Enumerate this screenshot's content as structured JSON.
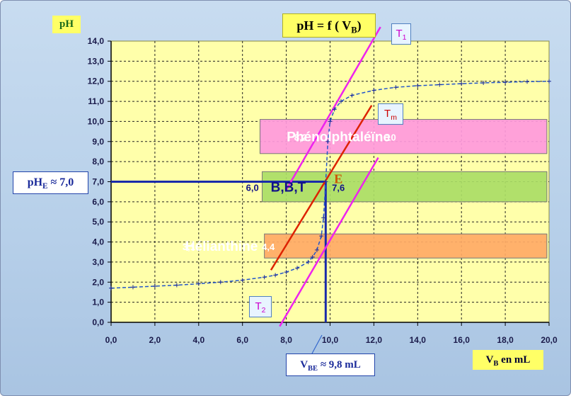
{
  "chart_data": {
    "type": "line",
    "title": "pH = f ( V",
    "title_sub": "B",
    "title_close": ")",
    "ylabel": "pH",
    "xlabel_main": "V",
    "xlabel_sub": "B",
    "xlabel_unit": " en mL",
    "xlim": [
      0,
      20
    ],
    "ylim": [
      0,
      14
    ],
    "x_ticks": [
      "0,0",
      "2,0",
      "4,0",
      "6,0",
      "8,0",
      "10,0",
      "12,0",
      "14,0",
      "16,0",
      "18,0",
      "20,0"
    ],
    "y_ticks": [
      "0,0",
      "1,0",
      "2,0",
      "3,0",
      "4,0",
      "5,0",
      "6,0",
      "7,0",
      "8,0",
      "9,0",
      "10,0",
      "11,0",
      "12,0",
      "13,0",
      "14,0"
    ],
    "grid": true,
    "series": [
      {
        "x": [
          0,
          1,
          2,
          3,
          4,
          5,
          6,
          7,
          7.5,
          8,
          8.5,
          9,
          9.2,
          9.4,
          9.6,
          9.7,
          9.8,
          9.9,
          10.0,
          10.2,
          10.5,
          11,
          12,
          13,
          14,
          15,
          16,
          17,
          18,
          19,
          20
        ],
        "y": [
          1.7,
          1.75,
          1.8,
          1.85,
          1.92,
          2.0,
          2.1,
          2.25,
          2.35,
          2.5,
          2.7,
          3.0,
          3.25,
          3.6,
          4.3,
          5.2,
          7.0,
          9.0,
          10.0,
          10.6,
          11.0,
          11.3,
          11.55,
          11.7,
          11.78,
          11.83,
          11.88,
          11.92,
          11.95,
          11.98,
          12.0
        ],
        "color": "#2255cc"
      }
    ],
    "tangents": [
      {
        "label": "T",
        "sub": "1",
        "color": "#ee22ee",
        "x1": 8.0,
        "y1": 6.6,
        "x2": 12.3,
        "y2": 14.7
      },
      {
        "label": "T",
        "sub": "m",
        "color": "#dd2200",
        "x1": 7.3,
        "y1": 2.6,
        "x2": 11.9,
        "y2": 10.8
      },
      {
        "label": "T",
        "sub": "2",
        "color": "#ee22ee",
        "x1": 7.7,
        "y1": -0.2,
        "x2": 12.2,
        "y2": 8.2
      }
    ],
    "equivalence": {
      "label": "E",
      "x": 9.8,
      "y": 7.0,
      "phe_label": "pH",
      "phe_sub": "E",
      "phe_value": " ≈  7,0",
      "vbe_label": "V",
      "vbe_sub": "BE",
      "vbe_value": " ≈ 9,8 mL"
    },
    "indicators": [
      {
        "name": "Phénolphtaléïne",
        "low_label": "8,2",
        "high_label": "10",
        "low": 8.2,
        "high": 10.0,
        "x_start": 6.8,
        "x_end": 19.9,
        "y_bottom": 8.4,
        "y_top": 10.1,
        "fill": "#ff99dd",
        "text_color": "#ffffff"
      },
      {
        "name": "B,B,T",
        "low_label": "6,0",
        "high_label": "7,6",
        "low": 6.0,
        "high": 7.6,
        "x_start": 6.9,
        "x_end": 19.9,
        "y_bottom": 6.0,
        "y_top": 7.5,
        "fill": "#aadd66",
        "text_color": "#111188"
      },
      {
        "name": "Hélianthine",
        "low_label": "3,1",
        "high_label": "4,4",
        "low": 3.1,
        "high": 4.4,
        "x_start": 7.0,
        "x_end": 19.9,
        "y_bottom": 3.2,
        "y_top": 4.4,
        "fill": "#ffaa66",
        "text_color": "#ffffff"
      }
    ]
  }
}
